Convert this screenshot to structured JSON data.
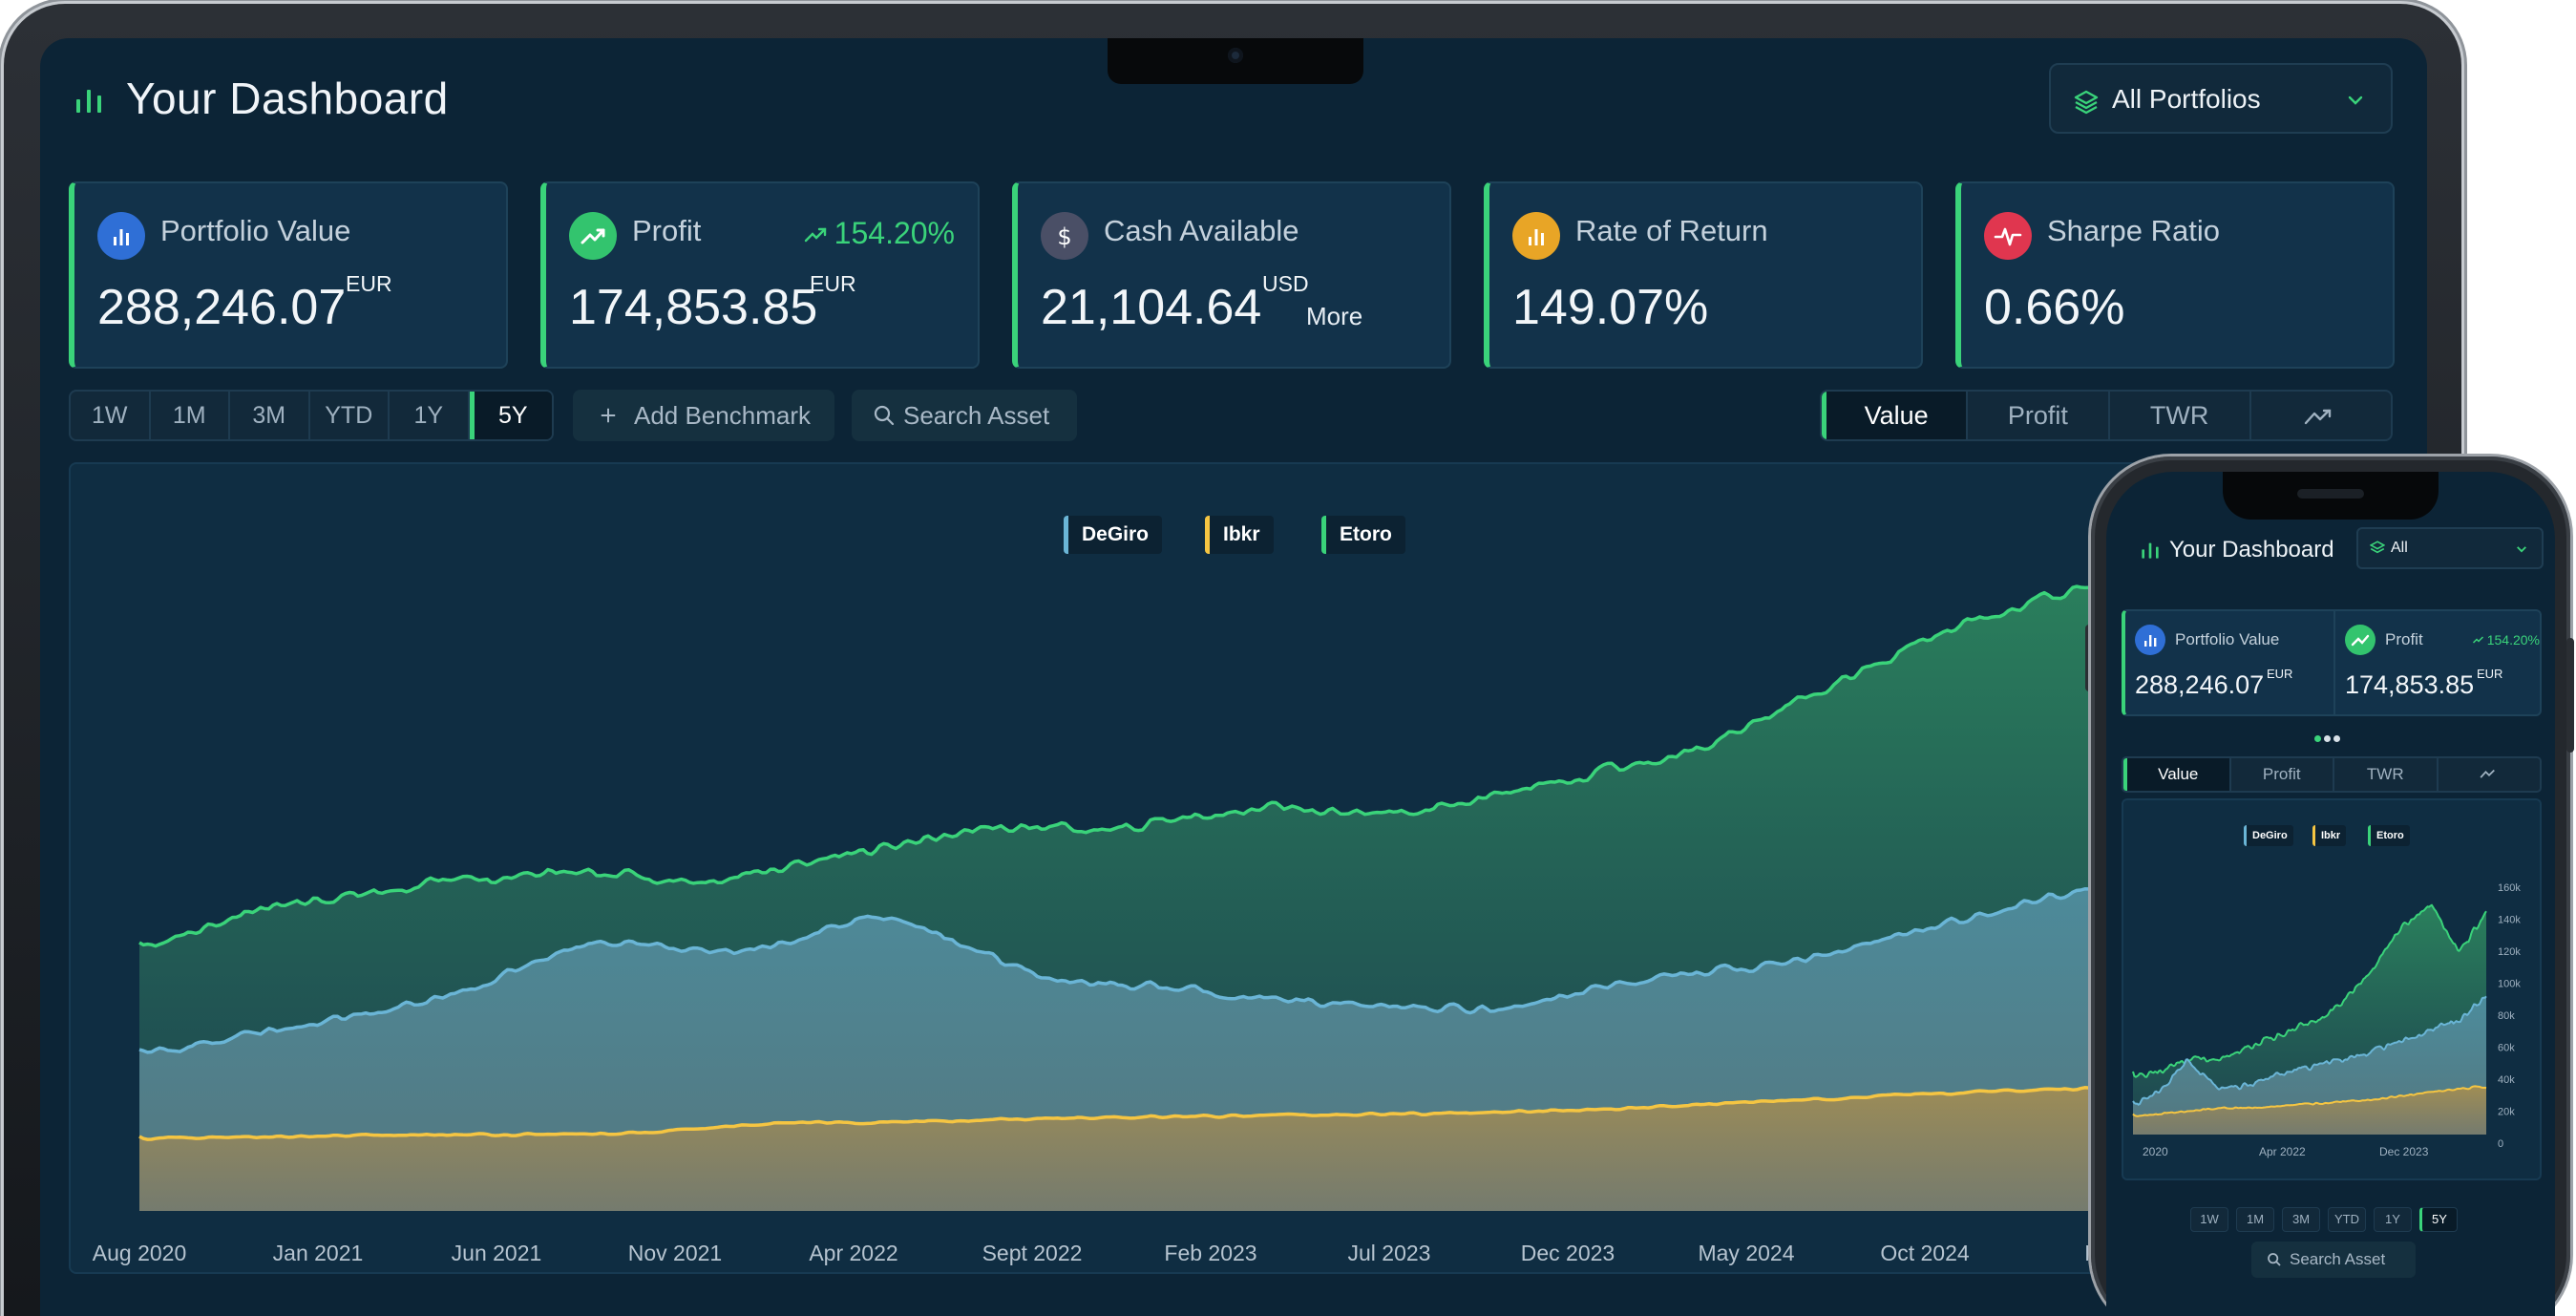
{
  "dashboard": {
    "title": "Your Dashboard",
    "portfolio_selector": "All Portfolios",
    "kpis": [
      {
        "label": "Portfolio Value",
        "value": "288,246.07",
        "currency": "EUR",
        "icon": "bar-chart-icon",
        "icon_color": "#2f6fd6"
      },
      {
        "label": "Profit",
        "value": "174,853.85",
        "currency": "EUR",
        "change": "154.20%",
        "icon": "trend-up-icon",
        "icon_color": "#33c46e"
      },
      {
        "label": "Cash Available",
        "value": "21,104.64",
        "currency": "USD",
        "more": "More",
        "icon": "dollar-icon",
        "icon_color": "#4a4f66"
      },
      {
        "label": "Rate of Return",
        "value": "149.07%",
        "icon": "bar-chart-icon",
        "icon_color": "#e8a526"
      },
      {
        "label": "Sharpe Ratio",
        "value": "0.66%",
        "icon": "pulse-icon",
        "icon_color": "#e0364f"
      }
    ],
    "ranges": [
      "1W",
      "1M",
      "3M",
      "YTD",
      "1Y",
      "5Y"
    ],
    "active_range": "5Y",
    "add_benchmark": "Add Benchmark",
    "search_asset": "Search Asset",
    "views": [
      "Value",
      "Profit",
      "TWR"
    ],
    "active_view": "Value"
  },
  "phone": {
    "title": "Your Dashboard",
    "portfolio_selector": "All",
    "kpis": [
      {
        "label": "Portfolio Value",
        "value": "288,246.07",
        "currency": "EUR"
      },
      {
        "label": "Profit",
        "value": "174,853.85",
        "currency": "EUR",
        "change": "154.20%"
      }
    ],
    "views": [
      "Value",
      "Profit",
      "TWR"
    ],
    "ranges": [
      "1W",
      "1M",
      "3M",
      "YTD",
      "1Y",
      "5Y"
    ],
    "search_asset": "Search Asset"
  },
  "colors": {
    "accent": "#3ad37a",
    "degiro": "#6ab5d6",
    "ibkr": "#f5c542",
    "etoro": "#3ad37a"
  },
  "chart_data": [
    {
      "type": "area",
      "series": [
        {
          "name": "DeGiro",
          "color": "#6ab5d6"
        },
        {
          "name": "Ibkr",
          "color": "#f5c542"
        },
        {
          "name": "Etoro",
          "color": "#3ad37a"
        }
      ],
      "x_ticks": [
        "Aug 2020",
        "Jan 2021",
        "Jun 2021",
        "Nov 2021",
        "Apr 2022",
        "Sept 2022",
        "Feb 2023",
        "Jul 2023",
        "Dec 2023",
        "May 2024",
        "Oct 2024",
        "Mar"
      ],
      "stacked": true,
      "grid": false,
      "legend": "top-center"
    },
    {
      "type": "area",
      "series": [
        {
          "name": "DeGiro",
          "color": "#6ab5d6"
        },
        {
          "name": "Ibkr",
          "color": "#f5c542"
        },
        {
          "name": "Etoro",
          "color": "#3ad37a"
        }
      ],
      "x_ticks": [
        "2020",
        "Apr 2022",
        "Dec 2023"
      ],
      "y_ticks": [
        "160k",
        "140k",
        "120k",
        "100k",
        "80k",
        "60k",
        "40k",
        "20k",
        "0"
      ],
      "ylim": [
        0,
        160000
      ],
      "legend": "top-center"
    }
  ]
}
